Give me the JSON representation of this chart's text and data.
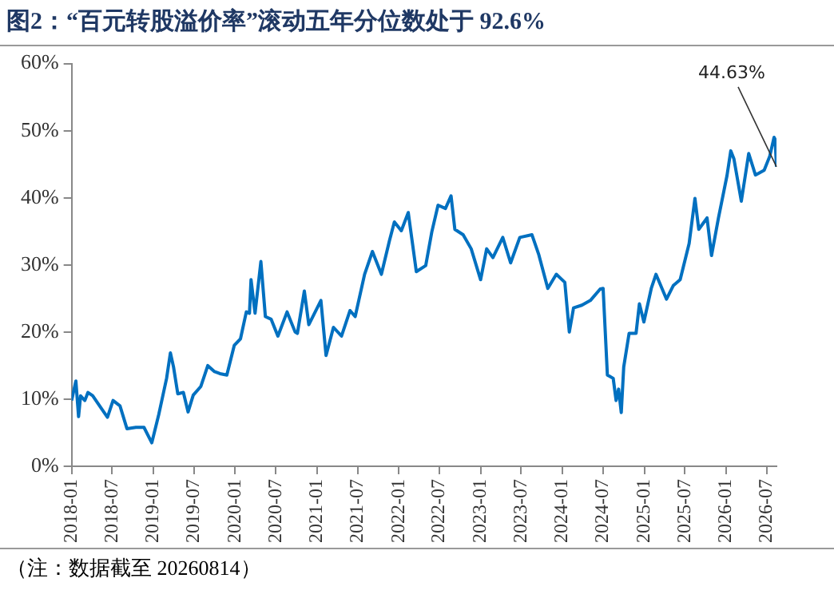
{
  "chart_data": {
    "type": "line",
    "title": "图2：“百元转股溢价率”滚动五年分位数处于 92.6%",
    "x": [
      "2018-01-01",
      "2018-01-20",
      "2018-02-01",
      "2018-02-10",
      "2018-03-01",
      "2018-03-15",
      "2018-04-05",
      "2018-06-10",
      "2018-07-05",
      "2018-08-05",
      "2018-09-05",
      "2018-10-15",
      "2018-11-20",
      "2018-12-25",
      "2019-01-25",
      "2019-03-01",
      "2019-03-18",
      "2019-04-01",
      "2019-04-20",
      "2019-05-15",
      "2019-06-05",
      "2019-06-28",
      "2019-08-01",
      "2019-09-01",
      "2019-10-01",
      "2019-10-25",
      "2019-11-25",
      "2019-12-28",
      "2020-01-25",
      "2020-02-20",
      "2020-03-05",
      "2020-03-12",
      "2020-03-30",
      "2020-04-25",
      "2020-05-15",
      "2020-06-10",
      "2020-07-10",
      "2020-08-20",
      "2020-09-25",
      "2020-10-05",
      "2020-11-05",
      "2020-11-25",
      "2021-01-18",
      "2021-02-10",
      "2021-03-15",
      "2021-04-20",
      "2021-05-28",
      "2021-06-20",
      "2021-08-01",
      "2021-09-05",
      "2021-10-15",
      "2021-11-20",
      "2021-12-12",
      "2022-01-12",
      "2022-02-12",
      "2022-03-20",
      "2022-05-01",
      "2022-05-28",
      "2022-06-25",
      "2022-07-28",
      "2022-08-22",
      "2022-09-08",
      "2022-10-15",
      "2022-11-20",
      "2023-01-01",
      "2023-01-28",
      "2023-02-25",
      "2023-04-10",
      "2023-05-15",
      "2023-06-25",
      "2023-08-18",
      "2023-09-18",
      "2023-10-28",
      "2023-12-05",
      "2024-01-12",
      "2024-02-01",
      "2024-02-20",
      "2024-03-28",
      "2024-05-05",
      "2024-06-18",
      "2024-07-01",
      "2024-07-20",
      "2024-08-15",
      "2024-08-28",
      "2024-09-08",
      "2024-09-20",
      "2024-10-01",
      "2024-10-25",
      "2024-11-25",
      "2024-12-10",
      "2024-12-30",
      "2025-02-01",
      "2025-02-22",
      "2025-04-10",
      "2025-05-10",
      "2025-06-10",
      "2025-07-20",
      "2025-08-15",
      "2025-09-01",
      "2025-10-08",
      "2025-10-28",
      "2025-11-28",
      "2026-01-05",
      "2026-01-22",
      "2026-02-05",
      "2026-03-10",
      "2026-04-12",
      "2026-05-12",
      "2026-06-20",
      "2026-07-15",
      "2026-08-03",
      "2026-08-08",
      "2026-08-14"
    ],
    "series": [
      {
        "color": "#0070c0",
        "values": [
          9.8,
          12.7,
          7.4,
          10.5,
          9.8,
          11,
          10.5,
          7.3,
          9.8,
          9,
          5.6,
          5.8,
          5.8,
          3.5,
          7.7,
          13.1,
          16.9,
          14.8,
          10.8,
          11,
          8.1,
          10.6,
          11.9,
          15,
          14.1,
          13.8,
          13.6,
          18,
          19,
          23,
          22.8,
          27.8,
          22.8,
          30.5,
          22.3,
          21.9,
          19.4,
          23,
          20,
          19.8,
          26.1,
          21.1,
          24.7,
          16.5,
          20.7,
          19.4,
          23.2,
          22.3,
          28.6,
          32,
          28.6,
          33.6,
          36.4,
          35.1,
          37.8,
          29,
          29.9,
          34.9,
          38.9,
          38.4,
          40.3,
          35.3,
          34.5,
          32.4,
          27.8,
          32.4,
          31.1,
          34.1,
          30.3,
          34.1,
          34.5,
          31.5,
          26.5,
          28.6,
          27.4,
          20,
          23.6,
          24,
          24.7,
          26.4,
          26.5,
          13.6,
          13.1,
          9.8,
          11.5,
          8,
          14.8,
          19.8,
          19.8,
          24.2,
          21.5,
          26.5,
          28.6,
          24.9,
          26.9,
          27.8,
          33.2,
          39.9,
          35.3,
          37,
          31.4,
          37,
          43.3,
          47,
          45.8,
          39.5,
          46.6,
          43.4,
          44.1,
          46.2,
          49,
          48.7,
          44.63
        ]
      }
    ],
    "xlim": [
      "2018-01-01",
      "2026-08-14"
    ],
    "xticks": [
      "2018-01",
      "2018-07",
      "2019-01",
      "2019-07",
      "2020-01",
      "2020-07",
      "2021-01",
      "2021-07",
      "2022-01",
      "2022-07",
      "2023-01",
      "2023-07",
      "2024-01",
      "2024-07",
      "2025-01",
      "2025-07",
      "2026-01",
      "2026-07"
    ],
    "ylim": [
      0,
      60
    ],
    "yticks": [
      {
        "value": 0,
        "label": "0%"
      },
      {
        "value": 10,
        "label": "10%"
      },
      {
        "value": 20,
        "label": "20%"
      },
      {
        "value": 30,
        "label": "30%"
      },
      {
        "value": 40,
        "label": "40%"
      },
      {
        "value": 50,
        "label": "50%"
      },
      {
        "value": 60,
        "label": "60%"
      }
    ],
    "grid": false,
    "legend": false,
    "marker": "none",
    "annotations": [
      {
        "text": "44.63%",
        "x": "2026-08-14",
        "y": 44.63
      },
      "（注：数据截至 20260814）"
    ]
  }
}
